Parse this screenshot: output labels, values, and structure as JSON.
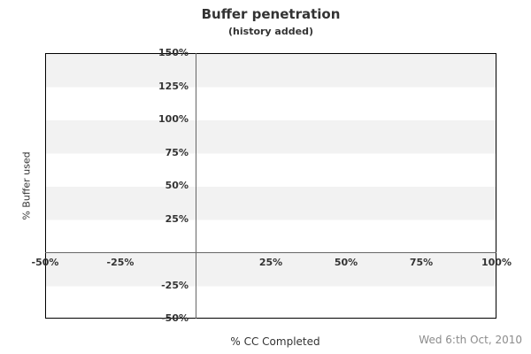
{
  "chart_data": {
    "type": "scatter",
    "title": "Buffer penetration",
    "subtitle": "(history added)",
    "xlabel": "% CC Completed",
    "ylabel": "% Buffer used",
    "xlim": [
      -50,
      100
    ],
    "ylim": [
      -50,
      150
    ],
    "x_ticks": [
      {
        "value": -50,
        "label": "-50%"
      },
      {
        "value": -25,
        "label": "-25%"
      },
      {
        "value": 25,
        "label": "25%"
      },
      {
        "value": 50,
        "label": "50%"
      },
      {
        "value": 75,
        "label": "75%"
      },
      {
        "value": 100,
        "label": "100%"
      }
    ],
    "y_ticks": [
      {
        "value": 150,
        "label": "150%"
      },
      {
        "value": 125,
        "label": "125%"
      },
      {
        "value": 100,
        "label": "100%"
      },
      {
        "value": 75,
        "label": "75%"
      },
      {
        "value": 50,
        "label": "50%"
      },
      {
        "value": 25,
        "label": "25%"
      },
      {
        "value": -25,
        "label": "-25%"
      },
      {
        "value": -50,
        "label": "-50%"
      }
    ],
    "series": [],
    "grid": "horizontal-bands-25pct",
    "legend": "none",
    "band_color": "#f2f2f2",
    "axis_line_color": "#666666",
    "border_color": "#000000"
  },
  "footer": {
    "date": "Wed 6:th Oct, 2010"
  }
}
